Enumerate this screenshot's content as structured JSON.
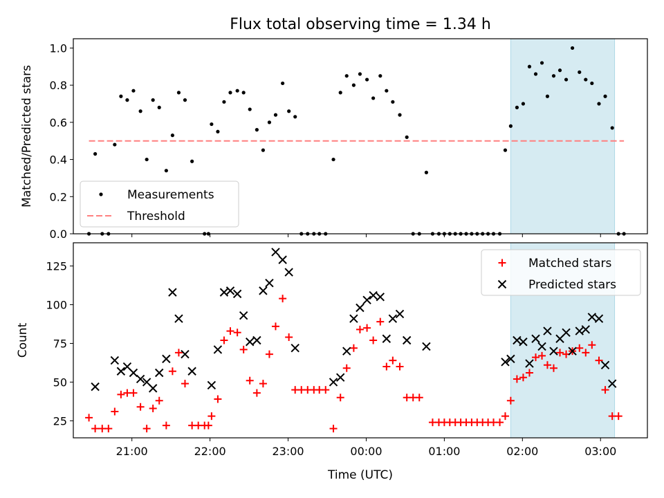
{
  "chart_data": {
    "title": "Flux total observing time = 1.34 h",
    "xlabel": "Time (UTC)",
    "x_unit": "hours relative to 00:00 UTC",
    "xlim": [
      -3.75,
      3.6
    ],
    "x_ticks": [
      {
        "value": -3,
        "label": "21:00"
      },
      {
        "value": -2,
        "label": "22:00"
      },
      {
        "value": -1,
        "label": "23:00"
      },
      {
        "value": 0,
        "label": "00:00"
      },
      {
        "value": 1,
        "label": "01:00"
      },
      {
        "value": 2,
        "label": "02:00"
      },
      {
        "value": 3,
        "label": "03:00"
      }
    ],
    "highlight_span": {
      "x0": 1.85,
      "x1": 3.18,
      "color": "#add8e6"
    },
    "panels": [
      {
        "type": "scatter",
        "ylabel": "Matched/Predicted stars",
        "ylim": [
          0,
          1.05
        ],
        "yticks": [
          0.0,
          0.2,
          0.4,
          0.6,
          0.8,
          1.0
        ],
        "ytick_labels": [
          "0.0",
          "0.2",
          "0.4",
          "0.6",
          "0.8",
          "1.0"
        ],
        "legend": {
          "position": "lower left",
          "entries": [
            "Measurements",
            "Threshold"
          ]
        },
        "series": [
          {
            "name": "Measurements",
            "marker": "dot",
            "color": "#000000",
            "points": [
              [
                -3.55,
                0.0
              ],
              [
                -3.47,
                0.43
              ],
              [
                -3.38,
                0.0
              ],
              [
                -3.3,
                0.0
              ],
              [
                -3.22,
                0.48
              ],
              [
                -3.14,
                0.74
              ],
              [
                -3.06,
                0.72
              ],
              [
                -2.98,
                0.77
              ],
              [
                -2.89,
                0.66
              ],
              [
                -2.81,
                0.4
              ],
              [
                -2.73,
                0.72
              ],
              [
                -2.65,
                0.68
              ],
              [
                -2.56,
                0.34
              ],
              [
                -2.48,
                0.53
              ],
              [
                -2.4,
                0.76
              ],
              [
                -2.32,
                0.72
              ],
              [
                -2.23,
                0.39
              ],
              [
                -2.07,
                0.0
              ],
              [
                -2.02,
                0.0
              ],
              [
                -1.98,
                0.59
              ],
              [
                -1.9,
                0.55
              ],
              [
                -1.82,
                0.71
              ],
              [
                -1.74,
                0.76
              ],
              [
                -1.65,
                0.77
              ],
              [
                -1.57,
                0.76
              ],
              [
                -1.49,
                0.67
              ],
              [
                -1.4,
                0.56
              ],
              [
                -1.32,
                0.45
              ],
              [
                -1.24,
                0.6
              ],
              [
                -1.16,
                0.64
              ],
              [
                -1.07,
                0.81
              ],
              [
                -0.99,
                0.66
              ],
              [
                -0.91,
                0.63
              ],
              [
                -0.83,
                0.0
              ],
              [
                -0.75,
                0.0
              ],
              [
                -0.67,
                0.0
              ],
              [
                -0.6,
                0.0
              ],
              [
                -0.52,
                0.0
              ],
              [
                -0.42,
                0.4
              ],
              [
                -0.33,
                0.76
              ],
              [
                -0.25,
                0.85
              ],
              [
                -0.16,
                0.8
              ],
              [
                -0.08,
                0.86
              ],
              [
                0.01,
                0.83
              ],
              [
                0.09,
                0.73
              ],
              [
                0.18,
                0.85
              ],
              [
                0.26,
                0.77
              ],
              [
                0.34,
                0.71
              ],
              [
                0.43,
                0.64
              ],
              [
                0.52,
                0.52
              ],
              [
                0.6,
                0.0
              ],
              [
                0.68,
                0.0
              ],
              [
                0.77,
                0.33
              ],
              [
                0.85,
                0.0
              ],
              [
                0.93,
                0.0
              ],
              [
                1.0,
                0.0
              ],
              [
                1.07,
                0.0
              ],
              [
                1.14,
                0.0
              ],
              [
                1.21,
                0.0
              ],
              [
                1.28,
                0.0
              ],
              [
                1.35,
                0.0
              ],
              [
                1.42,
                0.0
              ],
              [
                1.49,
                0.0
              ],
              [
                1.56,
                0.0
              ],
              [
                1.63,
                0.0
              ],
              [
                1.71,
                0.0
              ],
              [
                1.78,
                0.45
              ],
              [
                1.85,
                0.58
              ],
              [
                1.93,
                0.68
              ],
              [
                2.01,
                0.7
              ],
              [
                2.09,
                0.9
              ],
              [
                2.17,
                0.86
              ],
              [
                2.25,
                0.92
              ],
              [
                2.32,
                0.74
              ],
              [
                2.4,
                0.85
              ],
              [
                2.48,
                0.88
              ],
              [
                2.56,
                0.83
              ],
              [
                2.64,
                1.0
              ],
              [
                2.73,
                0.87
              ],
              [
                2.81,
                0.83
              ],
              [
                2.89,
                0.81
              ],
              [
                2.98,
                0.7
              ],
              [
                3.06,
                0.74
              ],
              [
                3.15,
                0.57
              ],
              [
                3.23,
                0.0
              ],
              [
                3.3,
                0.0
              ]
            ]
          },
          {
            "name": "Threshold",
            "marker": "dashed-line",
            "color": "#ff7f7f",
            "points": [
              [
                -3.55,
                0.5
              ],
              [
                3.3,
                0.5
              ]
            ]
          }
        ]
      },
      {
        "type": "scatter",
        "ylabel": "Count",
        "ylim": [
          14,
          140
        ],
        "yticks": [
          25,
          50,
          75,
          100,
          125
        ],
        "ytick_labels": [
          "25",
          "50",
          "75",
          "100",
          "125"
        ],
        "legend": {
          "position": "upper right",
          "entries": [
            "Matched stars",
            "Predicted stars"
          ]
        },
        "series": [
          {
            "name": "Matched stars",
            "marker": "plus",
            "color": "#ff0000",
            "points": [
              [
                -3.55,
                27
              ],
              [
                -3.47,
                20
              ],
              [
                -3.38,
                20
              ],
              [
                -3.3,
                20
              ],
              [
                -3.22,
                31
              ],
              [
                -3.14,
                42
              ],
              [
                -3.06,
                43
              ],
              [
                -2.98,
                43
              ],
              [
                -2.89,
                34
              ],
              [
                -2.81,
                20
              ],
              [
                -2.73,
                33
              ],
              [
                -2.65,
                38
              ],
              [
                -2.56,
                22
              ],
              [
                -2.48,
                57
              ],
              [
                -2.4,
                69
              ],
              [
                -2.32,
                49
              ],
              [
                -2.23,
                22
              ],
              [
                -2.15,
                22
              ],
              [
                -2.07,
                22
              ],
              [
                -2.02,
                22
              ],
              [
                -1.98,
                28
              ],
              [
                -1.9,
                39
              ],
              [
                -1.82,
                77
              ],
              [
                -1.74,
                83
              ],
              [
                -1.65,
                82
              ],
              [
                -1.57,
                71
              ],
              [
                -1.49,
                51
              ],
              [
                -1.4,
                43
              ],
              [
                -1.32,
                49
              ],
              [
                -1.24,
                68
              ],
              [
                -1.16,
                86
              ],
              [
                -1.07,
                104
              ],
              [
                -0.99,
                79
              ],
              [
                -0.91,
                45
              ],
              [
                -0.83,
                45
              ],
              [
                -0.75,
                45
              ],
              [
                -0.67,
                45
              ],
              [
                -0.6,
                45
              ],
              [
                -0.52,
                45
              ],
              [
                -0.42,
                20
              ],
              [
                -0.33,
                40
              ],
              [
                -0.25,
                59
              ],
              [
                -0.16,
                72
              ],
              [
                -0.08,
                84
              ],
              [
                0.01,
                85
              ],
              [
                0.09,
                77
              ],
              [
                0.18,
                89
              ],
              [
                0.26,
                60
              ],
              [
                0.34,
                64
              ],
              [
                0.43,
                60
              ],
              [
                0.52,
                40
              ],
              [
                0.6,
                40
              ],
              [
                0.68,
                40
              ],
              [
                0.85,
                24
              ],
              [
                0.93,
                24
              ],
              [
                1.0,
                24
              ],
              [
                1.07,
                24
              ],
              [
                1.14,
                24
              ],
              [
                1.21,
                24
              ],
              [
                1.28,
                24
              ],
              [
                1.35,
                24
              ],
              [
                1.42,
                24
              ],
              [
                1.49,
                24
              ],
              [
                1.56,
                24
              ],
              [
                1.63,
                24
              ],
              [
                1.71,
                24
              ],
              [
                1.78,
                28
              ],
              [
                1.85,
                38
              ],
              [
                1.93,
                52
              ],
              [
                2.01,
                53
              ],
              [
                2.09,
                56
              ],
              [
                2.17,
                66
              ],
              [
                2.25,
                67
              ],
              [
                2.32,
                61
              ],
              [
                2.4,
                59
              ],
              [
                2.48,
                69
              ],
              [
                2.56,
                68
              ],
              [
                2.64,
                70
              ],
              [
                2.73,
                72
              ],
              [
                2.81,
                69
              ],
              [
                2.89,
                74
              ],
              [
                2.98,
                64
              ],
              [
                3.06,
                45
              ],
              [
                3.15,
                28
              ],
              [
                3.23,
                28
              ]
            ]
          },
          {
            "name": "Predicted stars",
            "marker": "x",
            "color": "#000000",
            "points": [
              [
                -3.47,
                47
              ],
              [
                -3.22,
                64
              ],
              [
                -3.14,
                57
              ],
              [
                -3.06,
                60
              ],
              [
                -2.98,
                56
              ],
              [
                -2.89,
                52
              ],
              [
                -2.81,
                50
              ],
              [
                -2.73,
                46
              ],
              [
                -2.65,
                56
              ],
              [
                -2.56,
                65
              ],
              [
                -2.48,
                108
              ],
              [
                -2.4,
                91
              ],
              [
                -2.32,
                68
              ],
              [
                -2.23,
                57
              ],
              [
                -1.98,
                48
              ],
              [
                -1.9,
                71
              ],
              [
                -1.82,
                108
              ],
              [
                -1.74,
                109
              ],
              [
                -1.65,
                107
              ],
              [
                -1.57,
                93
              ],
              [
                -1.49,
                76
              ],
              [
                -1.4,
                77
              ],
              [
                -1.32,
                109
              ],
              [
                -1.24,
                114
              ],
              [
                -1.16,
                134
              ],
              [
                -1.07,
                129
              ],
              [
                -0.99,
                121
              ],
              [
                -0.91,
                72
              ],
              [
                -0.42,
                50
              ],
              [
                -0.33,
                53
              ],
              [
                -0.25,
                70
              ],
              [
                -0.16,
                91
              ],
              [
                -0.08,
                98
              ],
              [
                0.01,
                103
              ],
              [
                0.09,
                106
              ],
              [
                0.18,
                105
              ],
              [
                0.26,
                78
              ],
              [
                0.34,
                91
              ],
              [
                0.43,
                94
              ],
              [
                0.52,
                77
              ],
              [
                0.77,
                73
              ],
              [
                1.78,
                63
              ],
              [
                1.85,
                65
              ],
              [
                1.93,
                77
              ],
              [
                2.01,
                76
              ],
              [
                2.09,
                62
              ],
              [
                2.17,
                78
              ],
              [
                2.25,
                73
              ],
              [
                2.32,
                83
              ],
              [
                2.4,
                70
              ],
              [
                2.48,
                78
              ],
              [
                2.56,
                82
              ],
              [
                2.64,
                70
              ],
              [
                2.73,
                83
              ],
              [
                2.81,
                84
              ],
              [
                2.89,
                92
              ],
              [
                2.98,
                91
              ],
              [
                3.06,
                61
              ],
              [
                3.15,
                49
              ]
            ]
          }
        ]
      }
    ]
  }
}
